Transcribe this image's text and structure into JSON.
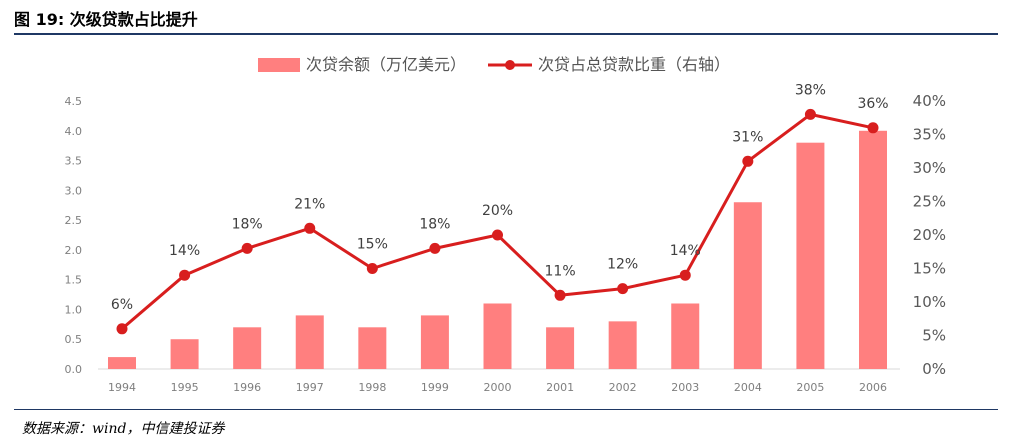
{
  "figure": {
    "title": "图 19:  次级贷款占比提升",
    "source": "数据来源：wind，中信建投证券"
  },
  "chart_data": {
    "type": "bar",
    "categories": [
      "1994",
      "1995",
      "1996",
      "1997",
      "1998",
      "1999",
      "2000",
      "2001",
      "2002",
      "2003",
      "2004",
      "2005",
      "2006"
    ],
    "series": [
      {
        "name": "次贷余额（万亿美元）",
        "type": "bar",
        "axis": "left",
        "color": "#ff7f7f",
        "values": [
          0.2,
          0.5,
          0.7,
          0.9,
          0.7,
          0.9,
          1.1,
          0.7,
          0.8,
          1.1,
          2.8,
          3.8,
          4.0
        ]
      },
      {
        "name": "次贷占总贷款比重（右轴）",
        "type": "line",
        "axis": "right",
        "color": "#d81e1e",
        "values": [
          6,
          14,
          18,
          21,
          15,
          18,
          20,
          11,
          12,
          14,
          31,
          38,
          36
        ],
        "labels": [
          "6%",
          "14%",
          "18%",
          "21%",
          "15%",
          "18%",
          "20%",
          "11%",
          "12%",
          "14%",
          "31%",
          "38%",
          "36%"
        ]
      }
    ],
    "left_axis": {
      "ylim": [
        0,
        4.5
      ],
      "ticks": [
        "0.0",
        "0.5",
        "1.0",
        "1.5",
        "2.0",
        "2.5",
        "3.0",
        "3.5",
        "4.0",
        "4.5"
      ]
    },
    "right_axis": {
      "ylim": [
        0,
        40
      ],
      "ticks": [
        "0%",
        "5%",
        "10%",
        "15%",
        "20%",
        "25%",
        "30%",
        "35%",
        "40%"
      ]
    },
    "legend_position": "top",
    "grid": false
  }
}
